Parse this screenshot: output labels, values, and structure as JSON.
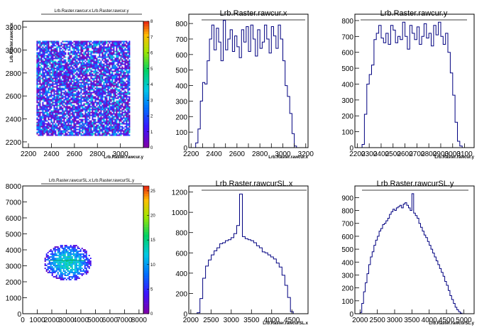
{
  "chart_data": [
    {
      "type": "heatmap",
      "title": "Lrb.Raster.rawcur.x:Lrb.Raster.rawcur.y",
      "xlabel": "Lrb.Raster.rawcur.y",
      "ylabel": "Lrb.Raster.rawcur.x",
      "xlim": [
        2150,
        3200
      ],
      "ylim": [
        2150,
        3250
      ],
      "xticks": [
        2200,
        2400,
        2600,
        2800,
        3000
      ],
      "yticks": [
        2200,
        2400,
        2600,
        2800,
        3000,
        3200
      ],
      "fill_region": {
        "x": [
          2270,
          3080
        ],
        "y": [
          2260,
          3080
        ]
      },
      "colorbar": {
        "min": 0,
        "max": 8,
        "ticks": [
          0,
          1,
          2,
          3,
          4,
          5,
          6,
          7,
          8
        ]
      }
    },
    {
      "type": "histogram",
      "title": "Lrb.Raster.rawcur.x",
      "xlabel": "Lrb.Raster.rawcur.x",
      "xlim": [
        2180,
        3220
      ],
      "ylim": [
        0,
        860
      ],
      "xticks": [
        2200,
        2300,
        2400,
        2500,
        2600,
        2700,
        2800,
        2900,
        3000,
        3100,
        3200
      ],
      "xlabeled": [
        2200,
        2400,
        2600,
        2800,
        3000,
        3200
      ],
      "yticks": [
        0,
        100,
        200,
        300,
        400,
        500,
        600,
        700,
        800
      ],
      "x": [
        2230,
        2250,
        2270,
        2290,
        2310,
        2330,
        2350,
        2370,
        2390,
        2410,
        2430,
        2450,
        2470,
        2490,
        2510,
        2530,
        2550,
        2570,
        2590,
        2610,
        2630,
        2650,
        2670,
        2690,
        2710,
        2730,
        2750,
        2770,
        2790,
        2810,
        2830,
        2850,
        2870,
        2890,
        2910,
        2930,
        2950,
        2970,
        2990,
        3010,
        3030,
        3050,
        3070,
        3090,
        3110
      ],
      "values": [
        0,
        30,
        120,
        300,
        420,
        410,
        560,
        700,
        790,
        630,
        770,
        680,
        560,
        820,
        630,
        700,
        760,
        620,
        720,
        650,
        580,
        760,
        680,
        780,
        620,
        790,
        700,
        590,
        760,
        640,
        680,
        790,
        700,
        610,
        780,
        720,
        640,
        790,
        700,
        560,
        400,
        330,
        220,
        90,
        10
      ]
    },
    {
      "type": "histogram",
      "title": "Lrb.Raster.rawcur.y",
      "xlabel": "Lrb.Raster.rawcur.y",
      "xlim": [
        2180,
        3180
      ],
      "ylim": [
        0,
        840
      ],
      "xticks": [
        2200,
        2300,
        2400,
        2500,
        2600,
        2700,
        2800,
        2900,
        3000,
        3100
      ],
      "xtick_labels": [
        "2200",
        "2300",
        "2400",
        "2500",
        "2600",
        "2700",
        "2800",
        "2900",
        "3000",
        "3100"
      ],
      "yticks": [
        0,
        100,
        200,
        300,
        400,
        500,
        600,
        700,
        800
      ],
      "x": [
        2250,
        2270,
        2290,
        2310,
        2330,
        2350,
        2370,
        2390,
        2410,
        2430,
        2450,
        2470,
        2490,
        2510,
        2530,
        2550,
        2570,
        2590,
        2610,
        2630,
        2650,
        2670,
        2690,
        2710,
        2730,
        2750,
        2770,
        2790,
        2810,
        2830,
        2850,
        2870,
        2890,
        2910,
        2930,
        2950,
        2970,
        2990,
        3010,
        3030,
        3050,
        3070
      ],
      "values": [
        20,
        210,
        400,
        460,
        520,
        680,
        720,
        770,
        690,
        660,
        720,
        650,
        770,
        740,
        660,
        700,
        680,
        790,
        700,
        620,
        770,
        720,
        680,
        760,
        650,
        700,
        780,
        690,
        720,
        640,
        770,
        710,
        790,
        700,
        650,
        720,
        600,
        470,
        330,
        160,
        40,
        10
      ]
    },
    {
      "type": "heatmap",
      "title": "Lrb.Raster.rawcurSL.x:Lrb.Raster.rawcurSL.y",
      "xlabel": "",
      "ylabel": "",
      "xlim": [
        0,
        8300
      ],
      "ylim": [
        0,
        8000
      ],
      "xticks": [
        0,
        1000,
        2000,
        3000,
        4000,
        5000,
        6000,
        7000,
        8000
      ],
      "yticks": [
        0,
        1000,
        2000,
        3000,
        4000,
        5000,
        6000,
        7000,
        8000
      ],
      "fill_ellipse": {
        "cx": 3050,
        "cy": 3250,
        "rx": 1650,
        "ry": 1150
      },
      "colorbar": {
        "min": 0,
        "max": 26,
        "ticks": [
          0,
          5,
          10,
          15,
          20,
          25
        ]
      }
    },
    {
      "type": "histogram",
      "title": "Lrb.Raster.rawcurSL.x",
      "xlabel": "Lrb.Raster.rawcurSL.x",
      "xlim": [
        1950,
        4900
      ],
      "ylim": [
        0,
        1260
      ],
      "xticks": [
        2000,
        2500,
        3000,
        3500,
        4000,
        4500
      ],
      "yticks": [
        0,
        200,
        400,
        600,
        800,
        1000,
        1200
      ],
      "x": [
        2190,
        2260,
        2330,
        2400,
        2470,
        2540,
        2610,
        2680,
        2750,
        2820,
        2890,
        2960,
        3030,
        3100,
        3170,
        3240,
        3310,
        3380,
        3450,
        3520,
        3590,
        3660,
        3730,
        3800,
        3870,
        3940,
        4010,
        4080,
        4150,
        4220,
        4290,
        4360,
        4430,
        4500
      ],
      "values": [
        10,
        150,
        350,
        470,
        530,
        580,
        620,
        650,
        690,
        700,
        720,
        730,
        750,
        790,
        870,
        1180,
        760,
        740,
        730,
        720,
        700,
        670,
        650,
        610,
        600,
        580,
        560,
        540,
        500,
        460,
        380,
        280,
        160,
        20
      ]
    },
    {
      "type": "histogram",
      "title": "Lrb.Raster.rawcurSL.y",
      "xlabel": "Lrb.Raster.rawcurSL.y",
      "xlim": [
        1850,
        5300
      ],
      "ylim": [
        0,
        990
      ],
      "xticks": [
        2000,
        2500,
        3000,
        3500,
        4000,
        4500,
        5000
      ],
      "yticks": [
        0,
        100,
        200,
        300,
        400,
        500,
        600,
        700,
        800,
        900
      ],
      "x": [
        2025,
        2075,
        2125,
        2175,
        2225,
        2275,
        2325,
        2375,
        2425,
        2475,
        2525,
        2575,
        2625,
        2675,
        2725,
        2775,
        2825,
        2875,
        2925,
        2975,
        3025,
        3075,
        3125,
        3175,
        3225,
        3275,
        3325,
        3375,
        3425,
        3475,
        3525,
        3575,
        3625,
        3675,
        3725,
        3775,
        3825,
        3875,
        3925,
        3975,
        4025,
        4075,
        4125,
        4175,
        4225,
        4275,
        4325,
        4375,
        4425,
        4475,
        4525,
        4575,
        4625,
        4675,
        4725,
        4775,
        4825,
        4875,
        4925,
        4975
      ],
      "values": [
        10,
        80,
        170,
        240,
        310,
        380,
        440,
        480,
        530,
        570,
        600,
        640,
        660,
        690,
        700,
        720,
        740,
        770,
        790,
        810,
        800,
        820,
        830,
        840,
        820,
        850,
        860,
        840,
        820,
        800,
        930,
        780,
        760,
        740,
        700,
        670,
        640,
        610,
        590,
        560,
        530,
        500,
        470,
        440,
        410,
        380,
        350,
        320,
        290,
        250,
        220,
        180,
        140,
        110,
        80,
        50,
        30,
        15,
        5,
        0
      ]
    }
  ]
}
